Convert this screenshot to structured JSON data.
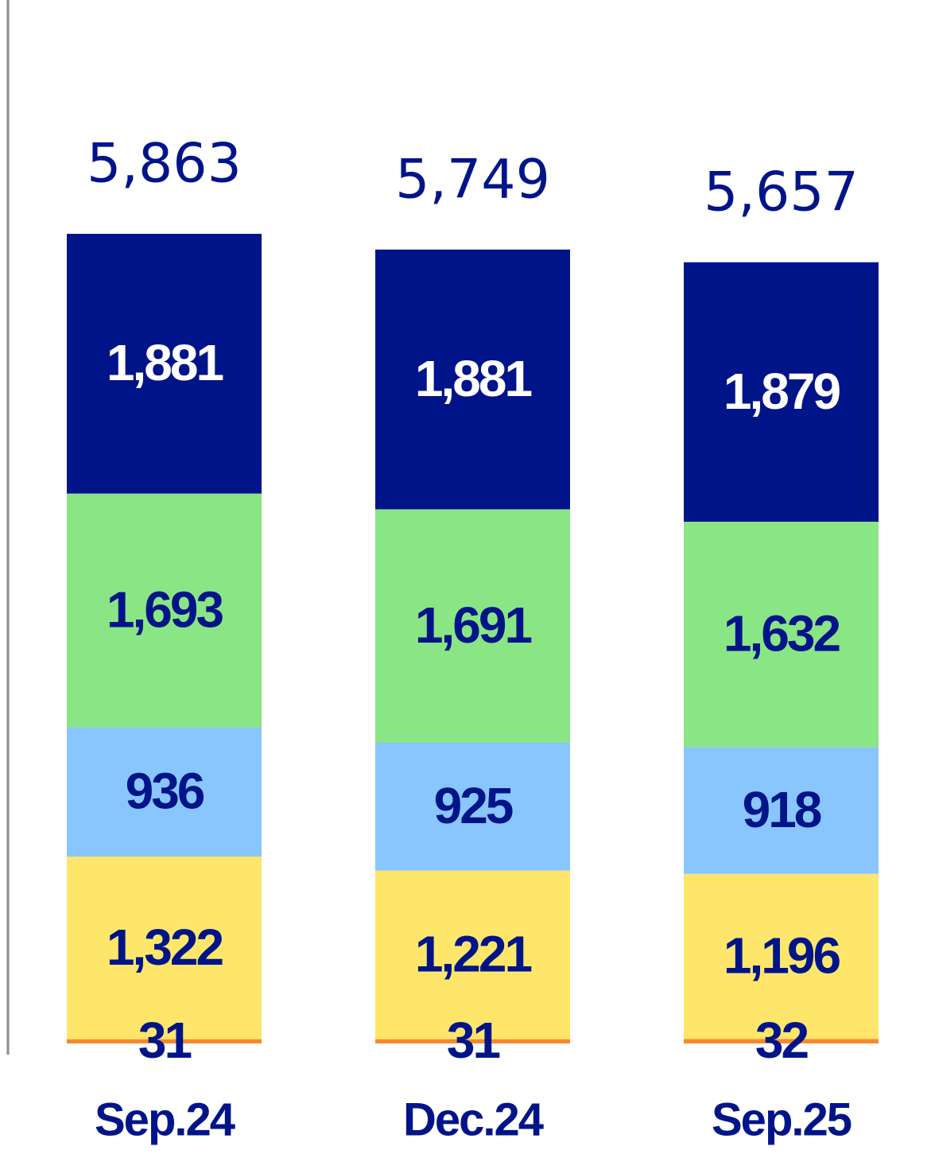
{
  "chart_data": {
    "type": "stacked-bar",
    "categories": [
      "Sep.24",
      "Dec.24",
      "Sep.25"
    ],
    "series": [
      {
        "color": "#f5892f",
        "values": [
          31,
          31,
          32
        ],
        "value_labels": [
          "31",
          "31",
          "32"
        ]
      },
      {
        "color": "#fde66a",
        "values": [
          1322,
          1221,
          1196
        ],
        "value_labels": [
          "1,322",
          "1,221",
          "1,196"
        ]
      },
      {
        "color": "#89c6ff",
        "values": [
          936,
          925,
          918
        ],
        "value_labels": [
          "936",
          "925",
          "918"
        ]
      },
      {
        "color": "#8ae685",
        "values": [
          1693,
          1691,
          1632
        ],
        "value_labels": [
          "1,693",
          "1,691",
          "1,632"
        ]
      },
      {
        "color": "#001489",
        "values": [
          1881,
          1881,
          1879
        ],
        "value_labels": [
          "1,881",
          "1,881",
          "1,879"
        ]
      }
    ],
    "totals": [
      5863,
      5749,
      5657
    ],
    "total_labels": [
      "5,863",
      "5,749",
      "5,657"
    ]
  }
}
